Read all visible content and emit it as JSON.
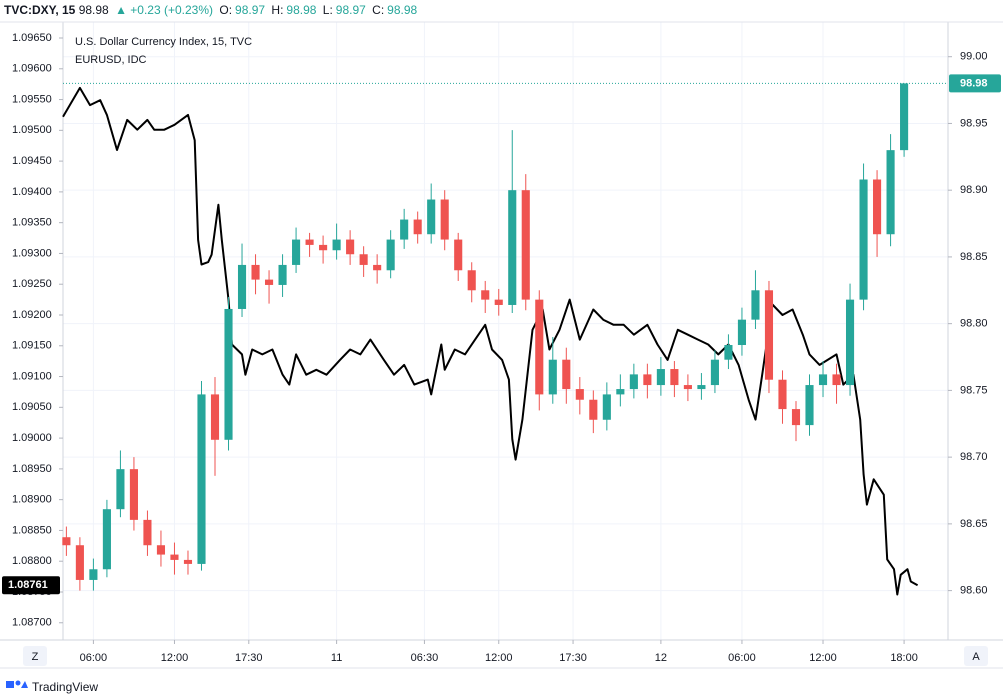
{
  "header": {
    "symbol": "TVC:DXY, 15",
    "price": "98.98",
    "change": "▲ +0.23 (+0.23%)",
    "ohlc": [
      {
        "label": "O:",
        "value": "98.97"
      },
      {
        "label": "H:",
        "value": "98.98"
      },
      {
        "label": "L:",
        "value": "98.97"
      },
      {
        "label": "C:",
        "value": "98.98"
      }
    ]
  },
  "footer": {
    "brand": "TradingView",
    "left_button": "Z",
    "right_button": "A"
  },
  "chart_data": {
    "type": "candlestick",
    "grid": true,
    "xlim": [
      3.75,
      69.25
    ],
    "xticks": [
      {
        "value": 6,
        "label": "06:00"
      },
      {
        "value": 12,
        "label": "12:00"
      },
      {
        "value": 17.5,
        "label": "17:30"
      },
      {
        "value": 24,
        "label": "11"
      },
      {
        "value": 30.5,
        "label": "06:30"
      },
      {
        "value": 36,
        "label": "12:00"
      },
      {
        "value": 41.5,
        "label": "17:30"
      },
      {
        "value": 48,
        "label": "12"
      },
      {
        "value": 54,
        "label": "06:00"
      },
      {
        "value": 60,
        "label": "12:00"
      },
      {
        "value": 66,
        "label": "18:00"
      }
    ],
    "ylim": [
      1.08672,
      1.09676
    ],
    "yticks": [
      {
        "value": 1.0965,
        "label": "1.09650"
      },
      {
        "value": 1.096,
        "label": "1.09600"
      },
      {
        "value": 1.0955,
        "label": "1.09550"
      },
      {
        "value": 1.095,
        "label": "1.09500"
      },
      {
        "value": 1.0945,
        "label": "1.09450"
      },
      {
        "value": 1.094,
        "label": "1.09400"
      },
      {
        "value": 1.0935,
        "label": "1.09350"
      },
      {
        "value": 1.093,
        "label": "1.09300"
      },
      {
        "value": 1.0925,
        "label": "1.09250"
      },
      {
        "value": 1.092,
        "label": "1.09200"
      },
      {
        "value": 1.0915,
        "label": "1.09150"
      },
      {
        "value": 1.091,
        "label": "1.09100"
      },
      {
        "value": 1.0905,
        "label": "1.09050"
      },
      {
        "value": 1.09,
        "label": "1.09000"
      },
      {
        "value": 1.0895,
        "label": "1.08950"
      },
      {
        "value": 1.089,
        "label": "1.08900"
      },
      {
        "value": 1.0885,
        "label": "1.08850"
      },
      {
        "value": 1.088,
        "label": "1.08800"
      },
      {
        "value": 1.0875,
        "label": "1.08750"
      },
      {
        "value": 1.087,
        "label": "1.08700"
      }
    ],
    "y2lim": [
      98.563,
      99.026
    ],
    "y2ticks": [
      {
        "value": 99,
        "label": "99.00"
      },
      98.95,
      {
        "value": 98.9,
        "label": "98.90"
      },
      98.85,
      {
        "value": 98.8,
        "label": "98.80"
      },
      98.75,
      {
        "value": 98.7,
        "label": "98.70"
      },
      98.65,
      {
        "value": 98.6,
        "label": "98.60"
      }
    ],
    "series": [
      {
        "name": "EURUSD, IDC",
        "type": "line",
        "color": "#000000",
        "x": [
          3.75,
          5,
          5.75,
          6.5,
          7,
          7.75,
          8.5,
          9.25,
          10,
          10.5,
          11.25,
          12,
          13,
          13.5,
          13.75,
          14,
          14.5,
          14.75,
          15.25,
          15.5,
          16,
          16.25,
          17,
          17.25,
          17.75,
          18.5,
          19.25,
          20,
          20.5,
          21,
          21.75,
          22.5,
          23.25,
          24.25,
          25,
          25.75,
          26.5,
          27.5,
          28.25,
          29,
          29.75,
          30.75,
          31,
          31.75,
          32,
          32.75,
          33.5,
          34.25,
          35,
          35.5,
          36.25,
          36.75,
          37,
          37.25,
          37.75,
          38.5,
          39.25,
          39.75,
          40.5,
          41.25,
          42,
          43,
          43.75,
          44.5,
          45.25,
          46,
          47,
          47.75,
          48.5,
          49.25,
          50,
          50.75,
          51.5,
          52.25,
          53,
          53.75,
          54.5,
          55,
          55.5,
          56.25,
          57,
          57.75,
          58.5,
          59,
          59.75,
          61,
          61.5,
          62.25,
          62.75,
          63,
          63.25,
          63.75,
          64.5,
          64.75,
          65.25,
          65.5,
          65.75,
          66.25,
          66.5,
          67
        ],
        "values": [
          1.09522,
          1.09569,
          1.09541,
          1.09549,
          1.09525,
          1.09468,
          1.09517,
          1.09501,
          1.09517,
          1.09501,
          1.09501,
          1.09509,
          1.09525,
          1.09484,
          1.09322,
          1.09282,
          1.09286,
          1.09298,
          1.09379,
          1.09322,
          1.09225,
          1.09152,
          1.09136,
          1.09103,
          1.09144,
          1.09136,
          1.09144,
          1.09103,
          1.09087,
          1.09136,
          1.09103,
          1.09111,
          1.09103,
          1.09127,
          1.09144,
          1.09136,
          1.0916,
          1.09127,
          1.09103,
          1.09119,
          1.09087,
          1.09095,
          1.09071,
          1.09152,
          1.09111,
          1.09144,
          1.09136,
          1.0916,
          1.09184,
          1.09144,
          1.09127,
          1.09095,
          1.08998,
          1.08965,
          1.0903,
          1.09176,
          1.09209,
          1.09144,
          1.09176,
          1.09225,
          1.0916,
          1.09209,
          1.09192,
          1.09184,
          1.09184,
          1.09168,
          1.09184,
          1.09152,
          1.09127,
          1.09176,
          1.09168,
          1.0916,
          1.09152,
          1.09136,
          1.09152,
          1.09119,
          1.09062,
          1.0903,
          1.09103,
          1.09217,
          1.092,
          1.09209,
          1.09168,
          1.09136,
          1.09119,
          1.09136,
          1.09087,
          1.09103,
          1.0903,
          1.08941,
          1.08892,
          1.08933,
          1.08908,
          1.08803,
          1.08787,
          1.08746,
          1.08778,
          1.08787,
          1.08767,
          1.08761
        ]
      },
      {
        "name": "U.S. Dollar Currency Index, 15, TVC",
        "type": "candlestick",
        "axis": "y2",
        "up_color": "#26a69a",
        "down_color": "#ef5350",
        "x": [
          4,
          5,
          6,
          7,
          8,
          9,
          10,
          11,
          12,
          13,
          14,
          15,
          16,
          17,
          18,
          19,
          20,
          21,
          22,
          23,
          24,
          25,
          26,
          27,
          28,
          29,
          30,
          31,
          32,
          33,
          34,
          35,
          36,
          37,
          38,
          39,
          40,
          41,
          42,
          43,
          44,
          45,
          46,
          47,
          48,
          49,
          50,
          51,
          52,
          53,
          54,
          55,
          56,
          57,
          58,
          59,
          60,
          61,
          62,
          63,
          64,
          65,
          66
        ],
        "open": [
          98.64,
          98.634,
          98.608,
          98.616,
          98.661,
          98.691,
          98.653,
          98.634,
          98.627,
          98.623,
          98.62,
          98.747,
          98.713,
          98.811,
          98.844,
          98.833,
          98.829,
          98.844,
          98.863,
          98.859,
          98.855,
          98.863,
          98.852,
          98.844,
          98.84,
          98.863,
          98.878,
          98.867,
          98.893,
          98.863,
          98.84,
          98.825,
          98.818,
          98.814,
          98.9,
          98.818,
          98.747,
          98.773,
          98.751,
          98.743,
          98.728,
          98.747,
          98.751,
          98.762,
          98.754,
          98.766,
          98.754,
          98.751,
          98.754,
          98.773,
          98.784,
          98.803,
          98.825,
          98.758,
          98.736,
          98.724,
          98.754,
          98.762,
          98.754,
          98.818,
          98.908,
          98.867,
          98.93
        ],
        "high": [
          98.648,
          98.64,
          98.624,
          98.668,
          98.705,
          98.7,
          98.66,
          98.645,
          98.636,
          98.63,
          98.757,
          98.76,
          98.82,
          98.86,
          98.852,
          98.84,
          98.852,
          98.872,
          98.868,
          98.866,
          98.875,
          98.87,
          98.858,
          98.852,
          98.87,
          98.886,
          98.884,
          98.905,
          98.9,
          98.868,
          98.846,
          98.832,
          98.826,
          98.945,
          98.912,
          98.825,
          98.79,
          98.782,
          98.76,
          98.75,
          98.756,
          98.762,
          98.77,
          98.77,
          98.775,
          98.772,
          98.762,
          98.763,
          98.78,
          98.792,
          98.812,
          98.84,
          98.832,
          98.765,
          98.742,
          98.762,
          98.772,
          98.77,
          98.83,
          98.92,
          98.915,
          98.942,
          98.98
        ],
        "low": [
          98.626,
          98.6,
          98.6,
          98.61,
          98.655,
          98.645,
          98.626,
          98.618,
          98.612,
          98.612,
          98.615,
          98.686,
          98.705,
          98.805,
          98.822,
          98.815,
          98.82,
          98.838,
          98.85,
          98.845,
          98.848,
          98.844,
          98.835,
          98.83,
          98.834,
          98.856,
          98.86,
          98.86,
          98.855,
          98.832,
          98.816,
          98.808,
          98.806,
          98.808,
          98.81,
          98.735,
          98.74,
          98.74,
          98.732,
          98.718,
          98.72,
          98.738,
          98.744,
          98.744,
          98.746,
          98.745,
          98.742,
          98.743,
          98.748,
          98.766,
          98.776,
          98.796,
          98.748,
          98.725,
          98.712,
          98.716,
          98.745,
          98.74,
          98.746,
          98.81,
          98.85,
          98.858,
          98.925
        ],
        "close": [
          98.634,
          98.608,
          98.616,
          98.661,
          98.691,
          98.653,
          98.634,
          98.627,
          98.623,
          98.62,
          98.747,
          98.713,
          98.811,
          98.844,
          98.833,
          98.829,
          98.844,
          98.863,
          98.859,
          98.855,
          98.863,
          98.852,
          98.844,
          98.84,
          98.863,
          98.878,
          98.867,
          98.893,
          98.863,
          98.84,
          98.825,
          98.818,
          98.814,
          98.9,
          98.818,
          98.747,
          98.773,
          98.751,
          98.743,
          98.728,
          98.747,
          98.751,
          98.762,
          98.754,
          98.766,
          98.754,
          98.751,
          98.754,
          98.773,
          98.784,
          98.803,
          98.825,
          98.758,
          98.736,
          98.724,
          98.754,
          98.762,
          98.754,
          98.818,
          98.908,
          98.867,
          98.93,
          98.98
        ]
      }
    ]
  }
}
